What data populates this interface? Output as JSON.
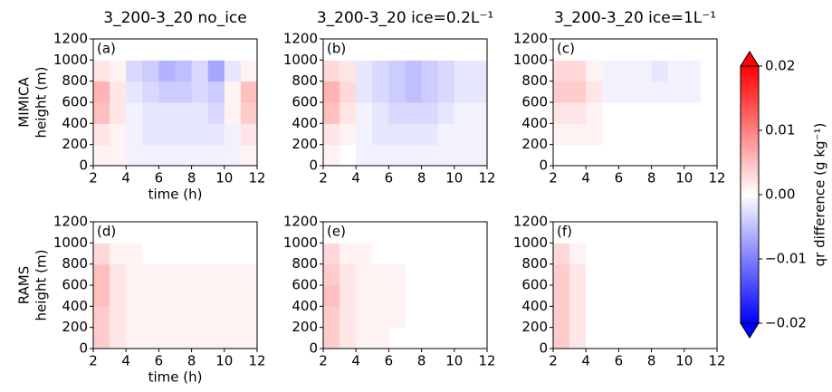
{
  "chart_data": [
    {
      "type": "heatmap",
      "title": "3_200-3_20 no_ice",
      "panel_label": "(a)",
      "row_label": "MIMICA",
      "ylabel": "height (m)",
      "xlabel": "time (h)",
      "xbins": [
        2,
        3,
        4,
        5,
        6,
        7,
        8,
        9,
        10,
        11,
        12
      ],
      "ybins": [
        0,
        200,
        400,
        600,
        800,
        1000,
        1200
      ],
      "values": [
        [
          0.001,
          0.001,
          -0.001,
          -0.001,
          -0.001,
          -0.001,
          -0.001,
          -0.001,
          -0.001,
          0.001
        ],
        [
          0.002,
          0.001,
          -0.001,
          -0.002,
          -0.002,
          -0.002,
          -0.002,
          -0.002,
          -0.001,
          0.002
        ],
        [
          0.005,
          0.002,
          -0.001,
          -0.002,
          -0.002,
          -0.002,
          -0.002,
          -0.003,
          0.001,
          0.004
        ],
        [
          0.006,
          0.002,
          -0.002,
          -0.003,
          -0.004,
          -0.004,
          -0.003,
          -0.004,
          0.001,
          0.005
        ],
        [
          0.002,
          0.001,
          -0.003,
          -0.004,
          -0.006,
          -0.005,
          -0.003,
          -0.007,
          -0.002,
          0.001
        ],
        [
          0,
          0,
          0,
          0,
          0,
          0,
          0,
          0,
          0,
          0
        ]
      ],
      "xlim": [
        2,
        12
      ],
      "ylim": [
        0,
        1200
      ],
      "xticks": [
        2,
        4,
        6,
        8,
        10,
        12
      ],
      "yticks": [
        0,
        200,
        400,
        600,
        800,
        1000,
        1200
      ]
    },
    {
      "type": "heatmap",
      "title": "3_200-3_20 ice=0.2L⁻¹",
      "panel_label": "(b)",
      "xbins": [
        2,
        3,
        4,
        5,
        6,
        7,
        8,
        9,
        10,
        11,
        12
      ],
      "ybins": [
        0,
        200,
        400,
        600,
        800,
        1000,
        1200
      ],
      "values": [
        [
          0.001,
          0,
          -0.001,
          -0.001,
          -0.001,
          -0.001,
          -0.001,
          -0.001,
          -0.001,
          -0.001
        ],
        [
          0.002,
          0.001,
          -0.001,
          -0.002,
          -0.002,
          -0.002,
          -0.002,
          -0.001,
          -0.001,
          -0.001
        ],
        [
          0.005,
          0.002,
          -0.001,
          -0.002,
          -0.003,
          -0.003,
          -0.003,
          -0.002,
          -0.001,
          -0.001
        ],
        [
          0.006,
          0.003,
          -0.002,
          -0.003,
          -0.004,
          -0.005,
          -0.004,
          -0.003,
          -0.002,
          -0.002
        ],
        [
          0.003,
          0.002,
          -0.002,
          -0.003,
          -0.004,
          -0.005,
          -0.004,
          -0.003,
          -0.002,
          -0.002
        ],
        [
          0,
          0,
          0,
          0,
          0,
          0,
          0,
          0,
          0,
          0
        ]
      ],
      "xlim": [
        2,
        12
      ],
      "ylim": [
        0,
        1200
      ],
      "xticks": [
        2,
        4,
        6,
        8,
        10,
        12
      ],
      "yticks": [
        0,
        200,
        400,
        600,
        800,
        1000,
        1200
      ]
    },
    {
      "type": "heatmap",
      "title": "3_200-3_20 ice=1L⁻¹",
      "panel_label": "(c)",
      "xbins": [
        2,
        3,
        4,
        5,
        6,
        7,
        8,
        9,
        10,
        11,
        12
      ],
      "ybins": [
        0,
        200,
        400,
        600,
        800,
        1000,
        1200
      ],
      "values": [
        [
          0,
          0,
          0,
          0,
          0,
          0,
          0,
          0,
          0,
          0
        ],
        [
          0.001,
          0.001,
          0.001,
          0,
          0,
          0,
          0,
          0,
          0,
          0
        ],
        [
          0.002,
          0.002,
          0.001,
          0,
          0,
          0,
          0,
          0,
          0,
          0
        ],
        [
          0.004,
          0.004,
          0.002,
          -0.001,
          -0.001,
          -0.001,
          -0.001,
          -0.001,
          -0.001,
          0
        ],
        [
          0.003,
          0.003,
          0.001,
          -0.001,
          -0.001,
          -0.001,
          -0.002,
          -0.001,
          -0.001,
          0
        ],
        [
          0,
          0,
          0,
          0,
          0,
          0,
          0,
          0,
          0,
          0
        ]
      ],
      "xlim": [
        2,
        12
      ],
      "ylim": [
        0,
        1200
      ],
      "xticks": [
        2,
        4,
        6,
        8,
        10,
        12
      ],
      "yticks": [
        0,
        200,
        400,
        600,
        800,
        1000,
        1200
      ]
    },
    {
      "type": "heatmap",
      "panel_label": "(d)",
      "row_label": "RAMS",
      "ylabel": "height (m)",
      "xlabel": "time (h)",
      "xbins": [
        2,
        3,
        4,
        5,
        6,
        7,
        8,
        9,
        10,
        11,
        12
      ],
      "ybins": [
        0,
        200,
        400,
        600,
        800,
        1000,
        1200
      ],
      "values": [
        [
          0.004,
          0.002,
          0.001,
          0.001,
          0.001,
          0.001,
          0.001,
          0.001,
          0.001,
          0.001
        ],
        [
          0.004,
          0.002,
          0.001,
          0.001,
          0.001,
          0.001,
          0.001,
          0.001,
          0.001,
          0.001
        ],
        [
          0.005,
          0.002,
          0.001,
          0.001,
          0.001,
          0.001,
          0.001,
          0.001,
          0.001,
          0.001
        ],
        [
          0.005,
          0.002,
          0.001,
          0.001,
          0.001,
          0.001,
          0.001,
          0.001,
          0.001,
          0.001
        ],
        [
          0.003,
          0.001,
          0.001,
          0,
          0,
          0,
          0,
          0,
          0,
          0
        ],
        [
          0,
          0,
          0,
          0,
          0,
          0,
          0,
          0,
          0,
          0
        ]
      ],
      "xlim": [
        2,
        12
      ],
      "ylim": [
        0,
        1200
      ],
      "xticks": [
        2,
        4,
        6,
        8,
        10,
        12
      ],
      "yticks": [
        0,
        200,
        400,
        600,
        800,
        1000,
        1200
      ]
    },
    {
      "type": "heatmap",
      "panel_label": "(e)",
      "xbins": [
        2,
        3,
        4,
        5,
        6,
        7,
        8,
        9,
        10,
        11,
        12
      ],
      "ybins": [
        0,
        200,
        400,
        600,
        800,
        1000,
        1200
      ],
      "values": [
        [
          0.004,
          0.002,
          0.001,
          0.001,
          0,
          0,
          0,
          0,
          0,
          0
        ],
        [
          0.004,
          0.002,
          0.001,
          0.001,
          0.001,
          0,
          0,
          0,
          0,
          0
        ],
        [
          0.005,
          0.002,
          0.001,
          0.001,
          0.001,
          0,
          0,
          0,
          0,
          0
        ],
        [
          0.004,
          0.002,
          0.001,
          0.001,
          0.001,
          0,
          0,
          0,
          0,
          0
        ],
        [
          0.003,
          0.001,
          0.001,
          0,
          0,
          0,
          0,
          0,
          0,
          0
        ],
        [
          0,
          0,
          0,
          0,
          0,
          0,
          0,
          0,
          0,
          0
        ]
      ],
      "xlim": [
        2,
        12
      ],
      "ylim": [
        0,
        1200
      ],
      "xticks": [
        2,
        4,
        6,
        8,
        10,
        12
      ],
      "yticks": [
        0,
        200,
        400,
        600,
        800,
        1000,
        1200
      ]
    },
    {
      "type": "heatmap",
      "panel_label": "(f)",
      "xbins": [
        2,
        3,
        4,
        5,
        6,
        7,
        8,
        9,
        10,
        11,
        12
      ],
      "ybins": [
        0,
        200,
        400,
        600,
        800,
        1000,
        1200
      ],
      "values": [
        [
          0.004,
          0.002,
          0,
          0,
          0,
          0,
          0,
          0,
          0,
          0
        ],
        [
          0.004,
          0.002,
          0,
          0,
          0,
          0,
          0,
          0,
          0,
          0
        ],
        [
          0.004,
          0.002,
          0,
          0,
          0,
          0,
          0,
          0,
          0,
          0
        ],
        [
          0.004,
          0.002,
          0,
          0,
          0,
          0,
          0,
          0,
          0,
          0
        ],
        [
          0.003,
          0.001,
          0,
          0,
          0,
          0,
          0,
          0,
          0,
          0
        ],
        [
          0,
          0,
          0,
          0,
          0,
          0,
          0,
          0,
          0,
          0
        ]
      ],
      "xlim": [
        2,
        12
      ],
      "ylim": [
        0,
        1200
      ],
      "xticks": [
        2,
        4,
        6,
        8,
        10,
        12
      ],
      "yticks": [
        0,
        200,
        400,
        600,
        800,
        1000,
        1200
      ]
    }
  ],
  "colorbar": {
    "label": "qr difference (g kg⁻¹)",
    "clim": [
      -0.02,
      0.02
    ],
    "cmap": "bwr",
    "ticks": [
      0.02,
      0.01,
      {
        "value": 0,
        "label": "0.00"
      },
      {
        "value": -0.01,
        "label": "−0.01"
      },
      {
        "value": -0.02,
        "label": "−0.02"
      }
    ]
  }
}
